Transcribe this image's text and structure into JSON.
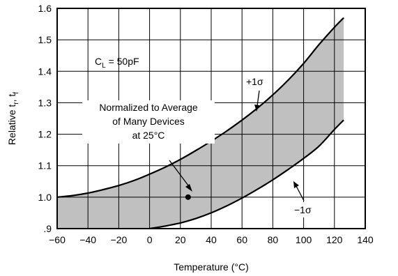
{
  "chart_data": {
    "type": "area",
    "title": "",
    "xlabel": "Temperature (°C)",
    "ylabel": "Relative t_r, t_f",
    "xlim": [
      -60,
      140
    ],
    "ylim": [
      0.9,
      1.6
    ],
    "x_ticks": [
      -60,
      -40,
      -20,
      0,
      20,
      40,
      60,
      80,
      100,
      120,
      140
    ],
    "y_ticks": [
      0.9,
      1.0,
      1.1,
      1.2,
      1.3,
      1.4,
      1.5,
      1.6
    ],
    "x_tick_labels": [
      "−60",
      "−40",
      "−20",
      "0",
      "20",
      "40",
      "60",
      "80",
      "100",
      "120",
      "140"
    ],
    "y_tick_labels": [
      ".9",
      "1.0",
      "1.1",
      "1.2",
      "1.3",
      "1.4",
      "1.5",
      "1.6"
    ],
    "grid": true,
    "band_color": "#c0c0c0",
    "series": [
      {
        "name": "+1σ",
        "x": [
          -60,
          -50,
          -40,
          -30,
          -20,
          -10,
          0,
          10,
          20,
          30,
          40,
          50,
          60,
          70,
          80,
          90,
          100,
          110,
          120,
          126
        ],
        "y": [
          1.0,
          1.005,
          1.013,
          1.024,
          1.037,
          1.053,
          1.073,
          1.095,
          1.12,
          1.148,
          1.178,
          1.21,
          1.245,
          1.283,
          1.325,
          1.372,
          1.425,
          1.485,
          1.54,
          1.57
        ]
      },
      {
        "name": "−1σ",
        "x": [
          0,
          10,
          20,
          30,
          40,
          50,
          60,
          70,
          80,
          90,
          100,
          110,
          120,
          126
        ],
        "y": [
          0.9,
          0.908,
          0.918,
          0.932,
          0.95,
          0.972,
          0.997,
          1.025,
          1.055,
          1.088,
          1.123,
          1.162,
          1.215,
          1.245
        ]
      }
    ],
    "point": {
      "x": 25,
      "y": 1.0
    },
    "annotations": {
      "cl_label": "= 50pF",
      "note_line1": "Normalized to Average",
      "note_line2": "of Many Devices",
      "note_line3": "at 25°C",
      "plus_label": "+1σ",
      "minus_label": "−1σ"
    }
  }
}
